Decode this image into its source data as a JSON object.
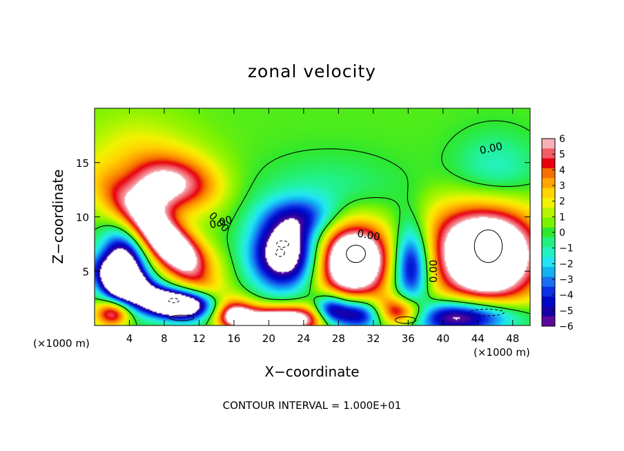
{
  "chart_data": {
    "type": "heatmap",
    "title": "zonal velocity",
    "xlabel": "X−coordinate",
    "ylabel": "Z−coordinate",
    "x_unit_left": "(×1000 m)",
    "x_unit_right": "(×1000 m)",
    "footer": "CONTOUR INTERVAL = 1.000E+01",
    "xlim": [
      0,
      50
    ],
    "ylim": [
      0,
      20
    ],
    "x_ticks": [
      4,
      8,
      12,
      16,
      20,
      24,
      28,
      32,
      36,
      40,
      44,
      48
    ],
    "x_tick_labels": [
      "4",
      "8",
      "12",
      "16",
      "20",
      "24",
      "28",
      "32",
      "36",
      "40",
      "44",
      "48"
    ],
    "y_ticks": [
      5,
      10,
      15
    ],
    "y_tick_labels": [
      "5",
      "10",
      "15"
    ],
    "contour_labels": [
      {
        "text": "0.00",
        "x": 14,
        "y": 9.3,
        "rotate": 45
      },
      {
        "text": "0.00",
        "x": 14.6,
        "y": 9.2,
        "rotate": -15
      },
      {
        "text": "0.00",
        "x": 31.4,
        "y": 8.0,
        "rotate": 10
      },
      {
        "text": "0.00",
        "x": 39.3,
        "y": 5.0,
        "rotate": -90
      },
      {
        "text": "0.00",
        "x": 45.6,
        "y": 16.0,
        "rotate": -12
      }
    ],
    "colorbar": {
      "min": -6,
      "max": 6,
      "tick_labels": [
        "6",
        "5",
        "4",
        "3",
        "2",
        "1",
        "0",
        "−1",
        "−2",
        "−3",
        "−4",
        "−5",
        "−6"
      ],
      "colors": [
        "#f7b1b5",
        "#f05d66",
        "#e8000f",
        "#f56f00",
        "#ffa500",
        "#ffd400",
        "#f2f200",
        "#b5f500",
        "#7cf200",
        "#2ee82e",
        "#22f080",
        "#22f2c2",
        "#22e4f2",
        "#10b2f2",
        "#1a70f0",
        "#0a30e4",
        "#0008c8",
        "#1800a8",
        "#5a0a9a"
      ]
    },
    "features": [
      {
        "x": 9,
        "y": 13,
        "amp": 4.5,
        "sx": 3.2,
        "sy": 1.8,
        "rot": 0
      },
      {
        "x": 6,
        "y": 14,
        "amp": 1.7,
        "sx": 5,
        "sy": 3,
        "rot": 0
      },
      {
        "x": 4,
        "y": 16,
        "amp": 0.8,
        "sx": 4,
        "sy": 3,
        "rot": 0
      },
      {
        "x": 6.5,
        "y": 12,
        "amp": 1.4,
        "sx": 2,
        "sy": 1.5,
        "rot": 0
      },
      {
        "x": 13,
        "y": 12.5,
        "amp": 0.8,
        "sx": 2,
        "sy": 1.5,
        "rot": 0
      },
      {
        "x": 24,
        "y": 10,
        "amp": -3.0,
        "sx": 3,
        "sy": 1.3,
        "rot": 0
      },
      {
        "x": 27,
        "y": 12,
        "amp": -1.3,
        "sx": 6,
        "sy": 2.5,
        "rot": 0
      },
      {
        "x": 46,
        "y": 14,
        "amp": -2.0,
        "sx": 3.5,
        "sy": 2.5,
        "rot": 0
      },
      {
        "x": 39.5,
        "y": 9.5,
        "amp": 0.7,
        "sx": 2.5,
        "sy": 2,
        "rot": 0
      },
      {
        "x": 9.5,
        "y": 6.7,
        "amp": 10,
        "sx": 5.5,
        "sy": 1.5,
        "rot": -35
      },
      {
        "x": 3.2,
        "y": 4.8,
        "amp": -10,
        "sx": 1.8,
        "sy": 2.6,
        "rot": 0
      },
      {
        "x": 5.5,
        "y": 3.2,
        "amp": -6,
        "sx": 4,
        "sy": 1,
        "rot": -20
      },
      {
        "x": 13,
        "y": 4.5,
        "amp": -4,
        "sx": 3,
        "sy": 1.2,
        "rot": -25
      },
      {
        "x": 22,
        "y": 6.6,
        "amp": -9,
        "sx": 2.8,
        "sy": 2.3,
        "rot": 0
      },
      {
        "x": 29.5,
        "y": 6.0,
        "amp": 10,
        "sx": 3.2,
        "sy": 2.6,
        "rot": 0
      },
      {
        "x": 36.3,
        "y": 5.5,
        "amp": -7,
        "sx": 1.5,
        "sy": 2.6,
        "rot": 0
      },
      {
        "x": 45,
        "y": 6.5,
        "amp": 11,
        "sx": 4.2,
        "sy": 3.2,
        "rot": 0
      },
      {
        "x": 2.3,
        "y": 1.2,
        "amp": 8,
        "sx": 1.6,
        "sy": 1.0,
        "rot": 0
      },
      {
        "x": 10,
        "y": 2.0,
        "amp": -9,
        "sx": 3,
        "sy": 0.9,
        "rot": 0
      },
      {
        "x": 16,
        "y": 1.0,
        "amp": 4,
        "sx": 1.5,
        "sy": 1.0,
        "rot": 0
      },
      {
        "x": 22,
        "y": 0.6,
        "amp": 8,
        "sx": 4,
        "sy": 0.9,
        "rot": 0
      },
      {
        "x": 27,
        "y": 1.5,
        "amp": -5,
        "sx": 1.3,
        "sy": 1.0,
        "rot": 0
      },
      {
        "x": 30,
        "y": 1.0,
        "amp": -8,
        "sx": 2.5,
        "sy": 1.0,
        "rot": 0
      },
      {
        "x": 35,
        "y": 1.2,
        "amp": 8,
        "sx": 2.2,
        "sy": 1.0,
        "rot": 0
      },
      {
        "x": 42,
        "y": 0.8,
        "amp": -8,
        "sx": 4.5,
        "sy": 1.1,
        "rot": 0
      }
    ],
    "inner_contours": [
      {
        "x": 9.1,
        "y": 2.3,
        "rx": 0.6,
        "ry": 0.2,
        "dashed": true
      },
      {
        "x": 21.6,
        "y": 7.5,
        "rx": 0.7,
        "ry": 0.3,
        "dashed": true
      },
      {
        "x": 21.3,
        "y": 6.7,
        "rx": 0.5,
        "ry": 0.35,
        "dashed": true
      },
      {
        "x": 30.0,
        "y": 6.6,
        "rx": 1.1,
        "ry": 0.8,
        "dashed": false
      },
      {
        "x": 45.2,
        "y": 7.3,
        "rx": 1.6,
        "ry": 1.5,
        "dashed": false
      },
      {
        "x": 10.0,
        "y": 0.7,
        "rx": 1.4,
        "ry": 0.25,
        "dashed": false
      },
      {
        "x": 35.7,
        "y": 0.5,
        "rx": 1.2,
        "ry": 0.3,
        "dashed": false
      },
      {
        "x": 45.0,
        "y": 1.2,
        "rx": 2.0,
        "ry": 0.3,
        "dashed": true
      }
    ]
  }
}
